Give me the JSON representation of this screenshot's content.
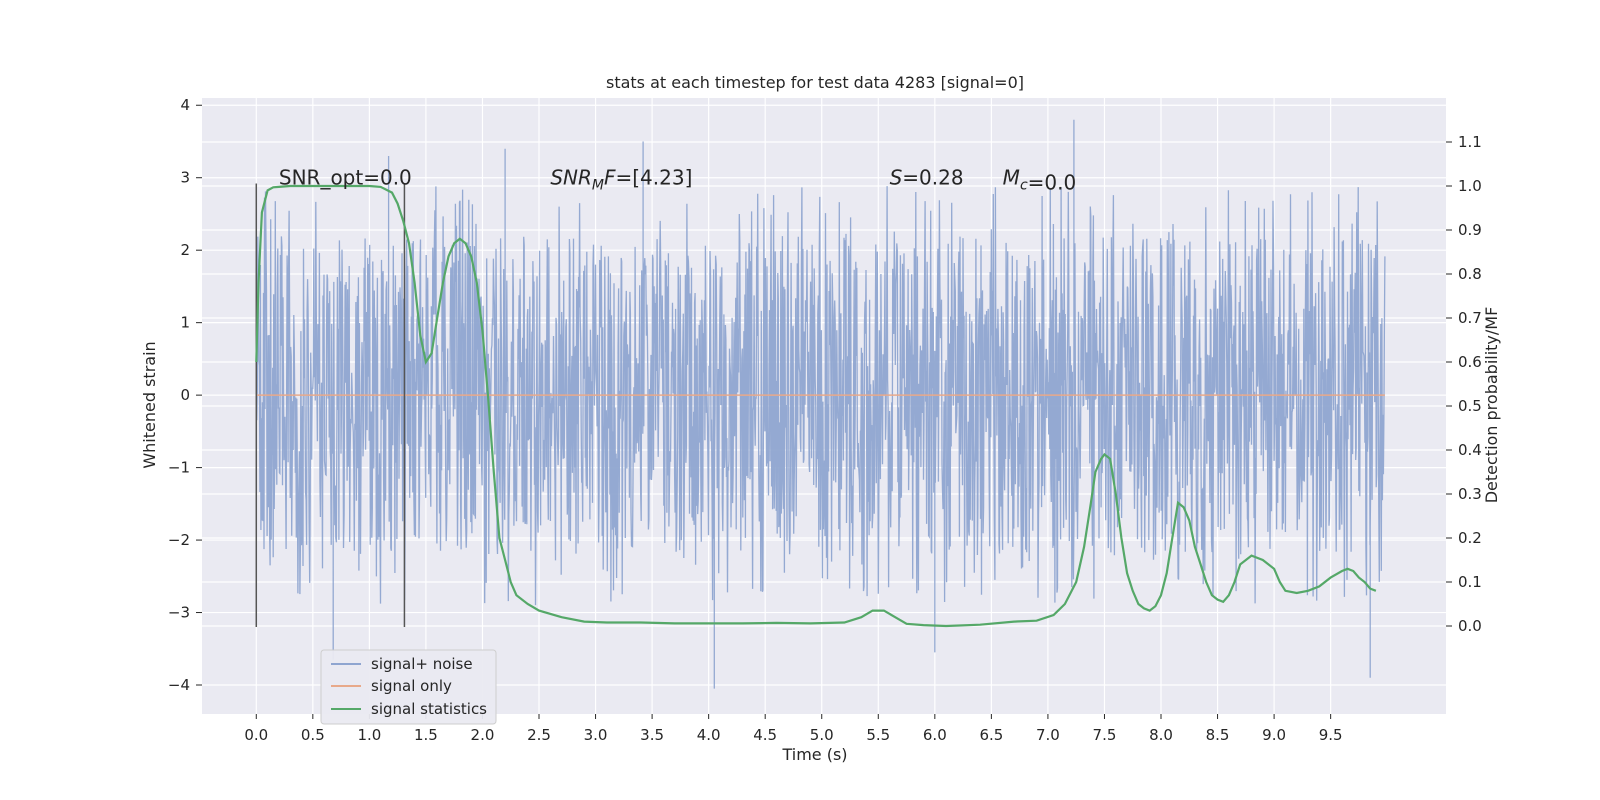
{
  "chart_data": {
    "type": "line",
    "title": "stats at each timestep for test data 4283 [signal=0]",
    "xlabel": "Time (s)",
    "ylabel_left": "Whitened strain",
    "ylabel_right": "Detection probability/MF",
    "xlim": [
      -0.48,
      10.52
    ],
    "ylim_left": [
      -4.4,
      4.1
    ],
    "ylim_right": [
      -0.2,
      1.2
    ],
    "x_ticks": [
      0.0,
      0.5,
      1.0,
      1.5,
      2.0,
      2.5,
      3.0,
      3.5,
      4.0,
      4.5,
      5.0,
      5.5,
      6.0,
      6.5,
      7.0,
      7.5,
      8.0,
      8.5,
      9.0,
      9.5
    ],
    "x_tick_labels": [
      "0.0",
      "0.5",
      "1.0",
      "1.5",
      "2.0",
      "2.5",
      "3.0",
      "3.5",
      "4.0",
      "4.5",
      "5.0",
      "5.5",
      "6.0",
      "6.5",
      "7.0",
      "7.5",
      "8.0",
      "8.5",
      "9.0",
      "9.5"
    ],
    "y_left_ticks": [
      4,
      3,
      2,
      1,
      0,
      -1,
      -2,
      -3,
      -4
    ],
    "y_left_tick_labels": [
      "4",
      "3",
      "2",
      "1",
      "0",
      "−1",
      "−2",
      "−3",
      "−4"
    ],
    "y_right_ticks": [
      1.1,
      1.0,
      0.9,
      0.8,
      0.7,
      0.6,
      0.5,
      0.4,
      0.3,
      0.2,
      0.1,
      0.0
    ],
    "y_right_tick_labels": [
      "1.1",
      "1.0",
      "0.9",
      "0.8",
      "0.7",
      "0.6",
      "0.5",
      "0.4",
      "0.3",
      "0.2",
      "0.1",
      "0.0"
    ],
    "grid": true,
    "legend_position": "lower-left",
    "vlines": [
      {
        "x": 0.0,
        "y_range": [
          -3.2,
          2.92
        ]
      },
      {
        "x": 1.31,
        "y_range": [
          -3.2,
          2.92
        ]
      }
    ],
    "annotations": [
      {
        "prefix": "SNR_opt",
        "suffix": "=0.0",
        "italic_prefix": false,
        "x": 0.2,
        "y": 3.0
      },
      {
        "prefix": "SNR",
        "subscript": "M",
        "italic_after_sub": "F",
        "suffix": "=[4.23]",
        "x": 2.6,
        "y": 3.0
      },
      {
        "prefix": "S",
        "suffix": "=0.28",
        "italic_prefix": true,
        "x": 5.6,
        "y": 3.0
      },
      {
        "prefix": "M",
        "subscript": "c",
        "suffix": "=0.0",
        "italic_prefix": true,
        "x": 6.6,
        "y": 3.0
      }
    ],
    "series": [
      {
        "name": "signal+ noise",
        "color": "#8fa5d0",
        "axis": "left",
        "kind": "noise",
        "x_range": [
          0.0,
          9.98
        ],
        "envelope_upper": 1.2,
        "envelope_lower": -1.2,
        "typical_peak": 2.2,
        "max": 3.8,
        "min": -4.05,
        "notable_spikes": [
          {
            "x": 0.68,
            "y": -3.65
          },
          {
            "x": 1.17,
            "y": 3.3
          },
          {
            "x": 2.2,
            "y": 3.4
          },
          {
            "x": 3.42,
            "y": 3.5
          },
          {
            "x": 4.05,
            "y": -4.05
          },
          {
            "x": 6.0,
            "y": -3.55
          },
          {
            "x": 7.23,
            "y": 3.8
          },
          {
            "x": 9.85,
            "y": -3.9
          }
        ]
      },
      {
        "name": "signal only",
        "color": "#e8a98a",
        "axis": "left",
        "kind": "line",
        "x": [
          0.0,
          9.98
        ],
        "y": [
          0.0,
          0.0
        ]
      },
      {
        "name": "signal statistics",
        "color": "#55a868",
        "axis": "right",
        "kind": "line",
        "x": [
          0.0,
          0.02,
          0.05,
          0.1,
          0.15,
          0.2,
          0.3,
          0.5,
          0.7,
          0.9,
          1.0,
          1.1,
          1.2,
          1.25,
          1.3,
          1.35,
          1.4,
          1.45,
          1.5,
          1.55,
          1.6,
          1.65,
          1.7,
          1.75,
          1.8,
          1.85,
          1.9,
          1.95,
          2.0,
          2.05,
          2.1,
          2.15,
          2.2,
          2.25,
          2.3,
          2.4,
          2.5,
          2.7,
          2.9,
          3.1,
          3.4,
          3.7,
          4.0,
          4.3,
          4.6,
          4.9,
          5.2,
          5.35,
          5.45,
          5.55,
          5.65,
          5.75,
          5.9,
          6.1,
          6.4,
          6.7,
          6.9,
          7.05,
          7.15,
          7.25,
          7.32,
          7.38,
          7.42,
          7.47,
          7.5,
          7.55,
          7.6,
          7.65,
          7.7,
          7.75,
          7.8,
          7.85,
          7.9,
          7.95,
          8.0,
          8.05,
          8.1,
          8.15,
          8.2,
          8.25,
          8.3,
          8.35,
          8.4,
          8.45,
          8.5,
          8.55,
          8.6,
          8.65,
          8.7,
          8.8,
          8.9,
          9.0,
          9.05,
          9.1,
          9.2,
          9.3,
          9.4,
          9.5,
          9.6,
          9.65,
          9.7,
          9.75,
          9.8,
          9.85,
          9.9
        ],
        "y": [
          0.6,
          0.78,
          0.94,
          0.99,
          0.997,
          0.998,
          1.0,
          1.0,
          1.0,
          1.0,
          1.0,
          0.998,
          0.985,
          0.96,
          0.92,
          0.87,
          0.78,
          0.66,
          0.6,
          0.62,
          0.7,
          0.78,
          0.84,
          0.87,
          0.88,
          0.87,
          0.84,
          0.78,
          0.67,
          0.52,
          0.35,
          0.2,
          0.15,
          0.1,
          0.07,
          0.05,
          0.035,
          0.02,
          0.01,
          0.008,
          0.008,
          0.006,
          0.006,
          0.006,
          0.007,
          0.006,
          0.008,
          0.02,
          0.035,
          0.035,
          0.02,
          0.005,
          0.002,
          0.0,
          0.003,
          0.01,
          0.012,
          0.025,
          0.05,
          0.1,
          0.18,
          0.28,
          0.35,
          0.38,
          0.39,
          0.38,
          0.3,
          0.2,
          0.12,
          0.08,
          0.05,
          0.04,
          0.035,
          0.045,
          0.07,
          0.12,
          0.2,
          0.28,
          0.27,
          0.24,
          0.18,
          0.14,
          0.1,
          0.07,
          0.06,
          0.055,
          0.07,
          0.1,
          0.14,
          0.16,
          0.15,
          0.13,
          0.1,
          0.08,
          0.075,
          0.08,
          0.09,
          0.11,
          0.125,
          0.13,
          0.125,
          0.11,
          0.1,
          0.085,
          0.08
        ]
      }
    ]
  }
}
